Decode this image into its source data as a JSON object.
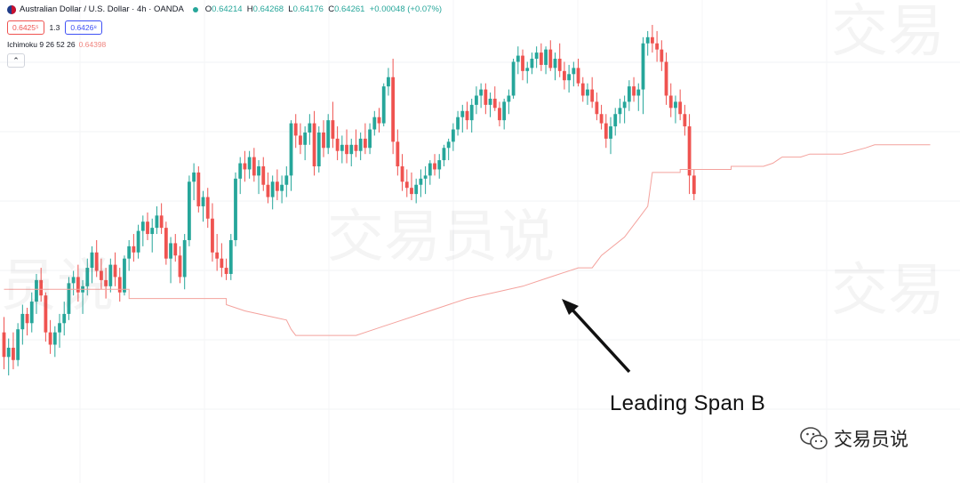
{
  "header": {
    "symbol": "Australian Dollar / U.S. Dollar · 4h · OANDA",
    "open_label": "O",
    "open": "0.64214",
    "high_label": "H",
    "high": "0.64268",
    "low_label": "L",
    "low": "0.64176",
    "close_label": "C",
    "close": "0.64261",
    "change": "+0.00048 (+0.07%)",
    "bid": "0.6425⁵",
    "spread": "1.3",
    "ask": "0.6426⁸",
    "indicator": "Ichimoku 9 26 52 26",
    "indicator_value": "0.64398",
    "collapse_icon": "chevron-up-icon",
    "collapse_glyph": "⌃"
  },
  "watermarks": [
    "交易员说",
    "员说",
    "交易"
  ],
  "annotation": {
    "text": "Leading Span B"
  },
  "brand": {
    "text": "交易员说",
    "icon": "wechat-icon"
  },
  "colors": {
    "up": "#26a69a",
    "down": "#ef5350",
    "span_b": "#f4a29d",
    "arrow": "#111111"
  },
  "chart_data": {
    "type": "candlestick",
    "interval": "4h",
    "ylim": [
      0.6322,
      0.646
    ],
    "candles": [
      [
        0.636,
        0.6365,
        0.6348,
        0.6352
      ],
      [
        0.6352,
        0.6358,
        0.6346,
        0.6355
      ],
      [
        0.6355,
        0.636,
        0.6348,
        0.6351
      ],
      [
        0.6351,
        0.6363,
        0.6349,
        0.6361
      ],
      [
        0.6361,
        0.6369,
        0.6356,
        0.6366
      ],
      [
        0.6366,
        0.6368,
        0.6359,
        0.6363
      ],
      [
        0.6363,
        0.6373,
        0.636,
        0.637
      ],
      [
        0.637,
        0.6379,
        0.6366,
        0.6377
      ],
      [
        0.6377,
        0.6381,
        0.637,
        0.6372
      ],
      [
        0.6372,
        0.6373,
        0.6357,
        0.636
      ],
      [
        0.636,
        0.6364,
        0.6353,
        0.6356
      ],
      [
        0.6356,
        0.6362,
        0.6352,
        0.636
      ],
      [
        0.636,
        0.6366,
        0.6355,
        0.6363
      ],
      [
        0.6363,
        0.637,
        0.6359,
        0.6366
      ],
      [
        0.6366,
        0.6378,
        0.6364,
        0.6376
      ],
      [
        0.6376,
        0.638,
        0.6372,
        0.6378
      ],
      [
        0.6378,
        0.6382,
        0.637,
        0.6373
      ],
      [
        0.6373,
        0.6377,
        0.6366,
        0.6375
      ],
      [
        0.6375,
        0.6384,
        0.6372,
        0.6381
      ],
      [
        0.6381,
        0.6388,
        0.6376,
        0.6386
      ],
      [
        0.6386,
        0.639,
        0.6378,
        0.638
      ],
      [
        0.638,
        0.6384,
        0.6374,
        0.6377
      ],
      [
        0.6377,
        0.6381,
        0.6371,
        0.6375
      ],
      [
        0.6375,
        0.6384,
        0.6373,
        0.6382
      ],
      [
        0.6382,
        0.6386,
        0.6375,
        0.6378
      ],
      [
        0.6378,
        0.6381,
        0.637,
        0.6373
      ],
      [
        0.6373,
        0.6385,
        0.6372,
        0.6384
      ],
      [
        0.6384,
        0.639,
        0.638,
        0.6388
      ],
      [
        0.6388,
        0.6392,
        0.6383,
        0.6386
      ],
      [
        0.6386,
        0.6395,
        0.6384,
        0.6393
      ],
      [
        0.6393,
        0.6398,
        0.6388,
        0.6396
      ],
      [
        0.6396,
        0.6399,
        0.639,
        0.6392
      ],
      [
        0.6392,
        0.6397,
        0.6386,
        0.6394
      ],
      [
        0.6394,
        0.6401,
        0.6392,
        0.6398
      ],
      [
        0.6398,
        0.6402,
        0.6392,
        0.6394
      ],
      [
        0.6394,
        0.6396,
        0.6382,
        0.6384
      ],
      [
        0.6384,
        0.6391,
        0.6376,
        0.6389
      ],
      [
        0.6389,
        0.6392,
        0.6383,
        0.6385
      ],
      [
        0.6385,
        0.6388,
        0.6376,
        0.6378
      ],
      [
        0.6378,
        0.6392,
        0.6374,
        0.639
      ],
      [
        0.639,
        0.6411,
        0.6388,
        0.6409
      ],
      [
        0.6409,
        0.6415,
        0.6403,
        0.6412
      ],
      [
        0.6412,
        0.6414,
        0.6399,
        0.6401
      ],
      [
        0.6401,
        0.6406,
        0.6396,
        0.6404
      ],
      [
        0.6404,
        0.6407,
        0.6394,
        0.6397
      ],
      [
        0.6397,
        0.6402,
        0.6383,
        0.6386
      ],
      [
        0.6386,
        0.6392,
        0.638,
        0.6384
      ],
      [
        0.6384,
        0.6389,
        0.6378,
        0.6381
      ],
      [
        0.6381,
        0.6384,
        0.6377,
        0.6379
      ],
      [
        0.6379,
        0.6392,
        0.6377,
        0.639
      ],
      [
        0.639,
        0.6412,
        0.6388,
        0.641
      ],
      [
        0.641,
        0.6417,
        0.6405,
        0.6415
      ],
      [
        0.6415,
        0.6419,
        0.6409,
        0.6413
      ],
      [
        0.6413,
        0.6419,
        0.641,
        0.6417
      ],
      [
        0.6417,
        0.642,
        0.6409,
        0.6411
      ],
      [
        0.6411,
        0.6416,
        0.6405,
        0.6414
      ],
      [
        0.6414,
        0.6417,
        0.6406,
        0.6408
      ],
      [
        0.6408,
        0.6412,
        0.6402,
        0.6404
      ],
      [
        0.6404,
        0.6411,
        0.64,
        0.6409
      ],
      [
        0.6409,
        0.6413,
        0.6403,
        0.6406
      ],
      [
        0.6406,
        0.6411,
        0.6402,
        0.6408
      ],
      [
        0.6408,
        0.6414,
        0.6404,
        0.6411
      ],
      [
        0.6411,
        0.6429,
        0.6406,
        0.6428
      ],
      [
        0.6428,
        0.6431,
        0.642,
        0.6424
      ],
      [
        0.6424,
        0.6428,
        0.6418,
        0.6421
      ],
      [
        0.6421,
        0.6427,
        0.6416,
        0.6425
      ],
      [
        0.6425,
        0.6431,
        0.6421,
        0.6428
      ],
      [
        0.6428,
        0.6432,
        0.6411,
        0.6414
      ],
      [
        0.6414,
        0.6427,
        0.6412,
        0.6425
      ],
      [
        0.6425,
        0.6429,
        0.6417,
        0.642
      ],
      [
        0.642,
        0.6431,
        0.6418,
        0.6429
      ],
      [
        0.6429,
        0.6435,
        0.642,
        0.6423
      ],
      [
        0.6423,
        0.6427,
        0.6416,
        0.6419
      ],
      [
        0.6419,
        0.6424,
        0.6415,
        0.6421
      ],
      [
        0.6421,
        0.6426,
        0.6415,
        0.6418
      ],
      [
        0.6418,
        0.6423,
        0.6414,
        0.6421
      ],
      [
        0.6421,
        0.6426,
        0.6417,
        0.6419
      ],
      [
        0.6419,
        0.6425,
        0.6416,
        0.6423
      ],
      [
        0.6423,
        0.6428,
        0.6418,
        0.642
      ],
      [
        0.642,
        0.6428,
        0.6418,
        0.6426
      ],
      [
        0.6426,
        0.6432,
        0.6424,
        0.643
      ],
      [
        0.643,
        0.6433,
        0.6425,
        0.6428
      ],
      [
        0.6428,
        0.6441,
        0.6427,
        0.644
      ],
      [
        0.644,
        0.6446,
        0.6437,
        0.6443
      ],
      [
        0.6443,
        0.6449,
        0.6418,
        0.6422
      ],
      [
        0.6422,
        0.6426,
        0.6411,
        0.6414
      ],
      [
        0.6414,
        0.6418,
        0.6406,
        0.6409
      ],
      [
        0.6409,
        0.6413,
        0.6404,
        0.6407
      ],
      [
        0.6407,
        0.6412,
        0.6403,
        0.6405
      ],
      [
        0.6405,
        0.641,
        0.6402,
        0.6408
      ],
      [
        0.6408,
        0.6413,
        0.6404,
        0.641
      ],
      [
        0.641,
        0.6414,
        0.6405,
        0.6411
      ],
      [
        0.6411,
        0.6416,
        0.6408,
        0.6415
      ],
      [
        0.6415,
        0.6418,
        0.6411,
        0.6413
      ],
      [
        0.6413,
        0.6418,
        0.641,
        0.6416
      ],
      [
        0.6416,
        0.6421,
        0.6414,
        0.642
      ],
      [
        0.642,
        0.6423,
        0.6416,
        0.6422
      ],
      [
        0.6422,
        0.6428,
        0.6419,
        0.6426
      ],
      [
        0.6426,
        0.6432,
        0.6424,
        0.643
      ],
      [
        0.643,
        0.6434,
        0.6425,
        0.6432
      ],
      [
        0.6432,
        0.6435,
        0.6426,
        0.6429
      ],
      [
        0.6429,
        0.6436,
        0.6425,
        0.6434
      ],
      [
        0.6434,
        0.644,
        0.6431,
        0.6437
      ],
      [
        0.6437,
        0.6441,
        0.6433,
        0.6439
      ],
      [
        0.6439,
        0.6441,
        0.6431,
        0.6434
      ],
      [
        0.6434,
        0.6438,
        0.643,
        0.6436
      ],
      [
        0.6436,
        0.644,
        0.6432,
        0.6433
      ],
      [
        0.6433,
        0.6435,
        0.6427,
        0.6429
      ],
      [
        0.6429,
        0.6436,
        0.6426,
        0.6435
      ],
      [
        0.6435,
        0.6439,
        0.6431,
        0.6437
      ],
      [
        0.6437,
        0.6449,
        0.6436,
        0.6448
      ],
      [
        0.6448,
        0.6453,
        0.6444,
        0.645
      ],
      [
        0.645,
        0.6452,
        0.6442,
        0.6445
      ],
      [
        0.6445,
        0.6448,
        0.6441,
        0.6446
      ],
      [
        0.6446,
        0.6451,
        0.6444,
        0.6449
      ],
      [
        0.6449,
        0.6453,
        0.6446,
        0.6451
      ],
      [
        0.6451,
        0.6454,
        0.6445,
        0.6447
      ],
      [
        0.6447,
        0.6453,
        0.6444,
        0.6452
      ],
      [
        0.6452,
        0.6455,
        0.6445,
        0.6446
      ],
      [
        0.6446,
        0.6451,
        0.6442,
        0.6449
      ],
      [
        0.6449,
        0.6454,
        0.6443,
        0.6445
      ],
      [
        0.6445,
        0.6448,
        0.6439,
        0.6442
      ],
      [
        0.6442,
        0.6447,
        0.6438,
        0.6444
      ],
      [
        0.6444,
        0.6448,
        0.644,
        0.6446
      ],
      [
        0.6446,
        0.6449,
        0.644,
        0.6441
      ],
      [
        0.6441,
        0.6443,
        0.6435,
        0.6437
      ],
      [
        0.6437,
        0.6441,
        0.6434,
        0.6439
      ],
      [
        0.6439,
        0.6443,
        0.6433,
        0.6435
      ],
      [
        0.6435,
        0.6438,
        0.6429,
        0.6431
      ],
      [
        0.6431,
        0.6434,
        0.6426,
        0.6428
      ],
      [
        0.6428,
        0.6431,
        0.642,
        0.6423
      ],
      [
        0.6423,
        0.643,
        0.6418,
        0.6427
      ],
      [
        0.6427,
        0.6433,
        0.6424,
        0.6431
      ],
      [
        0.6431,
        0.6436,
        0.6428,
        0.6433
      ],
      [
        0.6433,
        0.6437,
        0.6428,
        0.6435
      ],
      [
        0.6435,
        0.6442,
        0.6432,
        0.644
      ],
      [
        0.644,
        0.6443,
        0.6435,
        0.6437
      ],
      [
        0.6437,
        0.6441,
        0.6432,
        0.6439
      ],
      [
        0.6439,
        0.6456,
        0.6431,
        0.6454
      ],
      [
        0.6454,
        0.6458,
        0.645,
        0.6456
      ],
      [
        0.6456,
        0.646,
        0.6451,
        0.6454
      ],
      [
        0.6454,
        0.6458,
        0.6448,
        0.6452
      ],
      [
        0.6452,
        0.6455,
        0.6445,
        0.6448
      ],
      [
        0.6448,
        0.6451,
        0.6434,
        0.6437
      ],
      [
        0.6437,
        0.6441,
        0.643,
        0.6433
      ],
      [
        0.6433,
        0.6437,
        0.6428,
        0.6435
      ],
      [
        0.6435,
        0.6439,
        0.6429,
        0.6431
      ],
      [
        0.6431,
        0.6434,
        0.6424,
        0.6427
      ],
      [
        0.6427,
        0.6431,
        0.6405,
        0.6411
      ],
      [
        0.6411,
        0.6413,
        0.6403,
        0.6405
      ]
    ],
    "leading_span_b": [
      [
        0,
        0.6374
      ],
      [
        27,
        0.6374
      ],
      [
        27,
        0.6371
      ],
      [
        48,
        0.6371
      ],
      [
        48,
        0.6369
      ],
      [
        52,
        0.6367
      ],
      [
        58,
        0.6365
      ],
      [
        61,
        0.6364
      ],
      [
        62,
        0.6361
      ],
      [
        63,
        0.6359
      ],
      [
        66,
        0.6359
      ],
      [
        66,
        0.6359
      ],
      [
        74,
        0.6359
      ],
      [
        76,
        0.6359
      ],
      [
        80,
        0.6361
      ],
      [
        82,
        0.6362
      ],
      [
        86,
        0.6364
      ],
      [
        90,
        0.6366
      ],
      [
        96,
        0.6369
      ],
      [
        100,
        0.6371
      ],
      [
        106,
        0.6373
      ],
      [
        112,
        0.6375
      ],
      [
        118,
        0.6378
      ],
      [
        124,
        0.6381
      ],
      [
        127,
        0.6381
      ],
      [
        129,
        0.6385
      ],
      [
        134,
        0.6391
      ],
      [
        137,
        0.6397
      ],
      [
        139,
        0.6401
      ],
      [
        140,
        0.6412
      ],
      [
        146,
        0.6412
      ],
      [
        146,
        0.6413
      ],
      [
        157,
        0.6413
      ],
      [
        157,
        0.6414
      ],
      [
        164,
        0.6414
      ],
      [
        166,
        0.6415
      ],
      [
        167,
        0.6416
      ],
      [
        168,
        0.6417
      ],
      [
        172,
        0.6417
      ],
      [
        174,
        0.6418
      ],
      [
        181,
        0.6418
      ],
      [
        186,
        0.642
      ],
      [
        188,
        0.6421
      ],
      [
        200,
        0.6421
      ]
    ]
  }
}
